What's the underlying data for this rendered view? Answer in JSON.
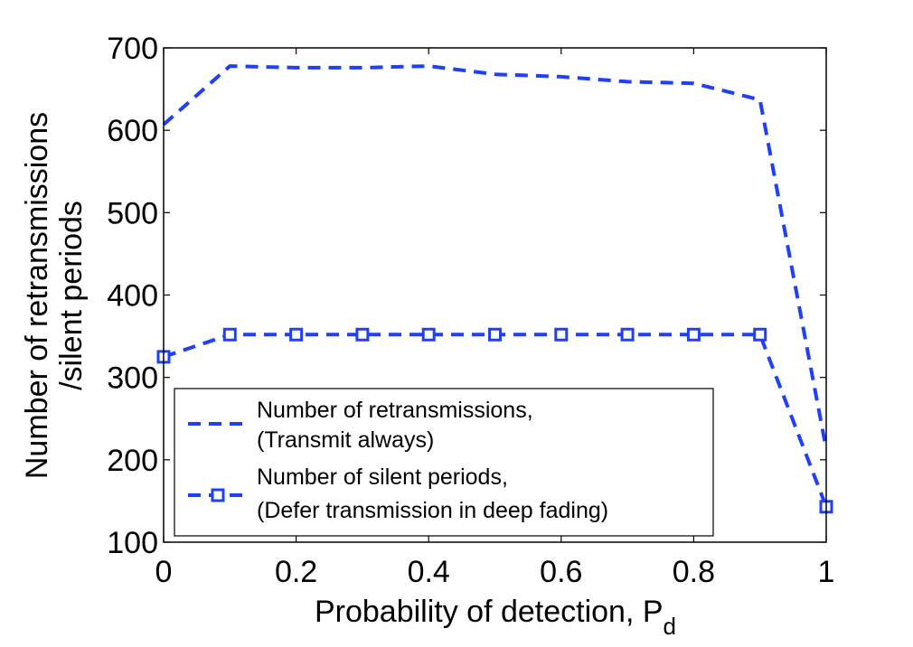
{
  "chart_data": {
    "type": "line",
    "xlabel": "Probability of detection, P",
    "xlabel_subscript": "d",
    "ylabel_lines": [
      "Number of retransmissions",
      "/silent periods"
    ],
    "xlim": [
      0,
      1
    ],
    "ylim": [
      100,
      700
    ],
    "xticks": [
      0,
      0.2,
      0.4,
      0.6,
      0.8,
      1
    ],
    "xtick_labels": [
      "0",
      "0.2",
      "0.4",
      "0.6",
      "0.8",
      "1"
    ],
    "yticks": [
      100,
      200,
      300,
      400,
      500,
      600,
      700
    ],
    "ytick_labels": [
      "100",
      "200",
      "300",
      "400",
      "500",
      "600",
      "700"
    ],
    "grid": false,
    "legend_position": "lower-left",
    "x": [
      0,
      0.1,
      0.2,
      0.3,
      0.4,
      0.5,
      0.6,
      0.7,
      0.8,
      0.9,
      1.0
    ],
    "series": [
      {
        "name": "retransmissions",
        "legend_lines": [
          "Number of retransmissions,",
          "(Transmit always)"
        ],
        "color": "#1f3fff",
        "linestyle": "dashed",
        "marker": "none",
        "values": [
          607,
          678,
          676,
          676,
          678,
          668,
          665,
          659,
          657,
          637,
          213
        ]
      },
      {
        "name": "silent-periods",
        "legend_lines": [
          "Number of silent periods,",
          "(Defer transmission in deep fading)"
        ],
        "color": "#1f3fff",
        "linestyle": "dashed",
        "marker": "square",
        "values": [
          325,
          352,
          352,
          352,
          352,
          352,
          352,
          352,
          352,
          352,
          143
        ]
      }
    ]
  }
}
